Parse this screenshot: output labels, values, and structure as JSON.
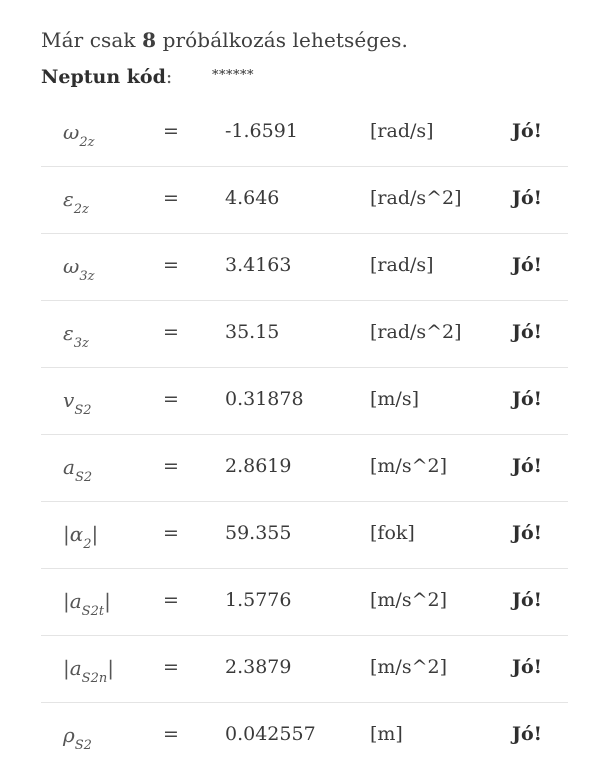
{
  "header": {
    "attempts_prefix": "Már csak ",
    "attempts_number": "8",
    "attempts_suffix": " próbálkozás lehetséges."
  },
  "neptun": {
    "label": "Neptun kód",
    "colon": ":",
    "value": "******"
  },
  "rows": [
    {
      "symbol": "ω",
      "sub": "2z",
      "eq": "=",
      "value": "-1.6591",
      "unit": "[rad/s]",
      "status": "Jó!"
    },
    {
      "symbol": "ε",
      "sub": "2z",
      "eq": "=",
      "value": "4.646",
      "unit": "[rad/s^2]",
      "status": "Jó!"
    },
    {
      "symbol": "ω",
      "sub": "3z",
      "eq": "=",
      "value": "3.4163",
      "unit": "[rad/s]",
      "status": "Jó!"
    },
    {
      "symbol": "ε",
      "sub": "3z",
      "eq": "=",
      "value": "35.15",
      "unit": "[rad/s^2]",
      "status": "Jó!"
    },
    {
      "symbol": "v",
      "sub": "S2",
      "eq": "=",
      "value": "0.31878",
      "unit": "[m/s]",
      "status": "Jó!"
    },
    {
      "symbol": "a",
      "sub": "S2",
      "eq": "=",
      "value": "2.8619",
      "unit": "[m/s^2]",
      "status": "Jó!"
    },
    {
      "symbol": "|α",
      "sub": "2",
      "tail": "|",
      "eq": "=",
      "value": "59.355",
      "unit": "[fok]",
      "status": "Jó!"
    },
    {
      "symbol": "|a",
      "sub": "S2t",
      "tail": "|",
      "eq": "=",
      "value": "1.5776",
      "unit": "[m/s^2]",
      "status": "Jó!"
    },
    {
      "symbol": "|a",
      "sub": "S2n",
      "tail": "|",
      "eq": "=",
      "value": "2.3879",
      "unit": "[m/s^2]",
      "status": "Jó!"
    },
    {
      "symbol": "ρ",
      "sub": "S2",
      "eq": "=",
      "value": "0.042557",
      "unit": "[m]",
      "status": "Jó!"
    }
  ]
}
